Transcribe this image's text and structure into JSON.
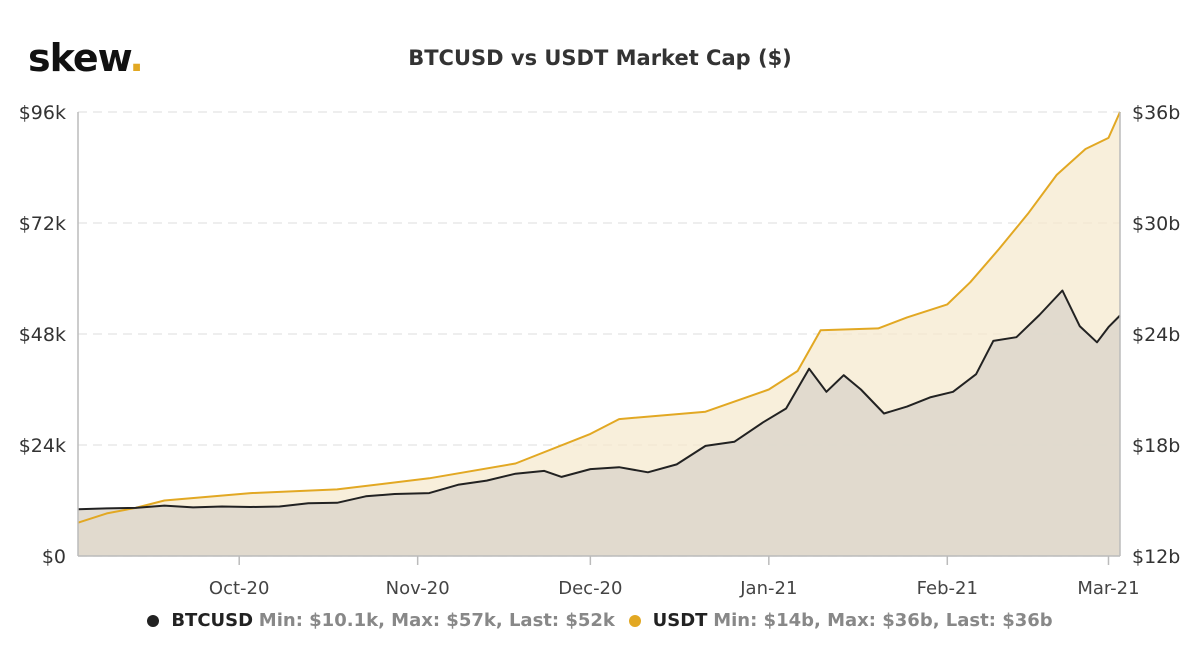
{
  "logo": {
    "text": "skew",
    "dot": "."
  },
  "chart_data": {
    "type": "line",
    "title": "BTCUSD vs USDT Market Cap ($)",
    "x_tick_labels": [
      "Oct-20",
      "Nov-20",
      "Dec-20",
      "Jan-21",
      "Feb-21",
      "Mar-21"
    ],
    "x_tick_dates": [
      "2020-10-01",
      "2020-11-01",
      "2020-12-01",
      "2021-01-01",
      "2021-02-01",
      "2021-03-01"
    ],
    "x_range": [
      "2020-09-03",
      "2021-03-03"
    ],
    "y_left": {
      "ticks": [
        0,
        24000,
        48000,
        72000,
        96000
      ],
      "labels": [
        "$0",
        "$24k",
        "$48k",
        "$72k",
        "$96k"
      ],
      "range": [
        0,
        96000
      ]
    },
    "y_right": {
      "ticks": [
        12,
        18,
        24,
        30,
        36
      ],
      "labels": [
        "$12b",
        "$18b",
        "$24b",
        "$30b",
        "$36b"
      ],
      "range": [
        12,
        36
      ]
    },
    "grid": true,
    "legend_position": "bottom",
    "series": [
      {
        "name": "BTCUSD",
        "axis": "left",
        "color": "#222222",
        "fill": "#ddd6cb",
        "stats": "Min: $10.1k, Max: $57k, Last: $52k",
        "points": [
          [
            "2020-09-03",
            10100
          ],
          [
            "2020-09-08",
            10300
          ],
          [
            "2020-09-13",
            10400
          ],
          [
            "2020-09-18",
            10900
          ],
          [
            "2020-09-23",
            10500
          ],
          [
            "2020-09-28",
            10700
          ],
          [
            "2020-10-03",
            10600
          ],
          [
            "2020-10-08",
            10700
          ],
          [
            "2020-10-13",
            11400
          ],
          [
            "2020-10-18",
            11500
          ],
          [
            "2020-10-23",
            12900
          ],
          [
            "2020-10-28",
            13400
          ],
          [
            "2020-11-03",
            13600
          ],
          [
            "2020-11-08",
            15400
          ],
          [
            "2020-11-13",
            16300
          ],
          [
            "2020-11-18",
            17800
          ],
          [
            "2020-11-23",
            18400
          ],
          [
            "2020-11-26",
            17100
          ],
          [
            "2020-12-01",
            18800
          ],
          [
            "2020-12-06",
            19200
          ],
          [
            "2020-12-11",
            18100
          ],
          [
            "2020-12-16",
            19800
          ],
          [
            "2020-12-21",
            23800
          ],
          [
            "2020-12-26",
            24700
          ],
          [
            "2020-12-31",
            28900
          ],
          [
            "2021-01-04",
            31900
          ],
          [
            "2021-01-08",
            40500
          ],
          [
            "2021-01-11",
            35500
          ],
          [
            "2021-01-14",
            39100
          ],
          [
            "2021-01-17",
            36000
          ],
          [
            "2021-01-21",
            30800
          ],
          [
            "2021-01-25",
            32300
          ],
          [
            "2021-01-29",
            34300
          ],
          [
            "2021-02-02",
            35500
          ],
          [
            "2021-02-06",
            39300
          ],
          [
            "2021-02-09",
            46500
          ],
          [
            "2021-02-13",
            47300
          ],
          [
            "2021-02-17",
            52100
          ],
          [
            "2021-02-21",
            57400
          ],
          [
            "2021-02-24",
            49700
          ],
          [
            "2021-02-27",
            46200
          ],
          [
            "2021-03-01",
            49500
          ],
          [
            "2021-03-03",
            52000
          ]
        ]
      },
      {
        "name": "USDT",
        "axis": "right",
        "color": "#e2a823",
        "fill": "#f5e9cf",
        "stats": "Min: $14b, Max: $36b, Last: $36b",
        "points": [
          [
            "2020-09-03",
            13.8
          ],
          [
            "2020-09-08",
            14.3
          ],
          [
            "2020-09-13",
            14.6
          ],
          [
            "2020-09-18",
            15.0
          ],
          [
            "2020-10-03",
            15.4
          ],
          [
            "2020-10-18",
            15.6
          ],
          [
            "2020-11-03",
            16.2
          ],
          [
            "2020-11-18",
            17.0
          ],
          [
            "2020-12-01",
            18.6
          ],
          [
            "2020-12-06",
            19.4
          ],
          [
            "2020-12-21",
            19.8
          ],
          [
            "2021-01-01",
            21.0
          ],
          [
            "2021-01-06",
            22.0
          ],
          [
            "2021-01-10",
            24.2
          ],
          [
            "2021-01-20",
            24.3
          ],
          [
            "2021-01-25",
            24.9
          ],
          [
            "2021-02-01",
            25.6
          ],
          [
            "2021-02-05",
            26.8
          ],
          [
            "2021-02-10",
            28.6
          ],
          [
            "2021-02-15",
            30.5
          ],
          [
            "2021-02-20",
            32.6
          ],
          [
            "2021-02-25",
            34.0
          ],
          [
            "2021-03-01",
            34.6
          ],
          [
            "2021-03-03",
            36.0
          ]
        ]
      }
    ]
  }
}
